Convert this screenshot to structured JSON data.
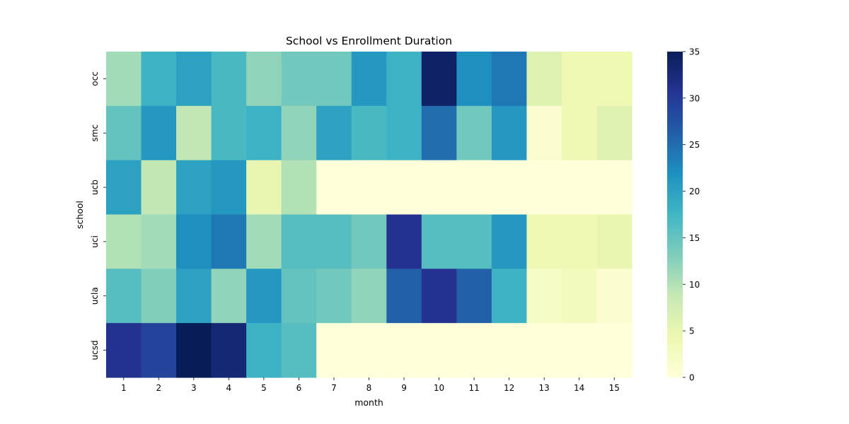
{
  "chart_data": {
    "type": "heatmap",
    "title": "School vs Enrollment Duration",
    "xlabel": "month",
    "ylabel": "school",
    "x": [
      "1",
      "2",
      "3",
      "4",
      "5",
      "6",
      "7",
      "8",
      "9",
      "10",
      "11",
      "12",
      "13",
      "14",
      "15"
    ],
    "y": [
      "occ",
      "smc",
      "ucb",
      "uci",
      "ucla",
      "ucsd"
    ],
    "values": [
      [
        11,
        18,
        20,
        17,
        12,
        14,
        14,
        21,
        18,
        34,
        22,
        24,
        6,
        4,
        4
      ],
      [
        15,
        21,
        9,
        17,
        18,
        12,
        20,
        17,
        18,
        25,
        14,
        21,
        1,
        4,
        6
      ],
      [
        20,
        9,
        20,
        21,
        5,
        10,
        0,
        0,
        0,
        0,
        0,
        0,
        0,
        0,
        0
      ],
      [
        10,
        11,
        22,
        24,
        11,
        16,
        16,
        14,
        31,
        16,
        16,
        21,
        4,
        4,
        5
      ],
      [
        16,
        13,
        20,
        12,
        21,
        15,
        14,
        12,
        26,
        31,
        26,
        18,
        2,
        3,
        1
      ],
      [
        31,
        29,
        35,
        33,
        18,
        16,
        0,
        0,
        0,
        0,
        0,
        0,
        0,
        0,
        0
      ]
    ],
    "colorbar": {
      "range": [
        0,
        35
      ],
      "ticks": [
        "0",
        "5",
        "10",
        "15",
        "20",
        "25",
        "30",
        "35"
      ],
      "colormap": "YlGnBu"
    },
    "grid": false,
    "legend": "colorbar-right"
  }
}
